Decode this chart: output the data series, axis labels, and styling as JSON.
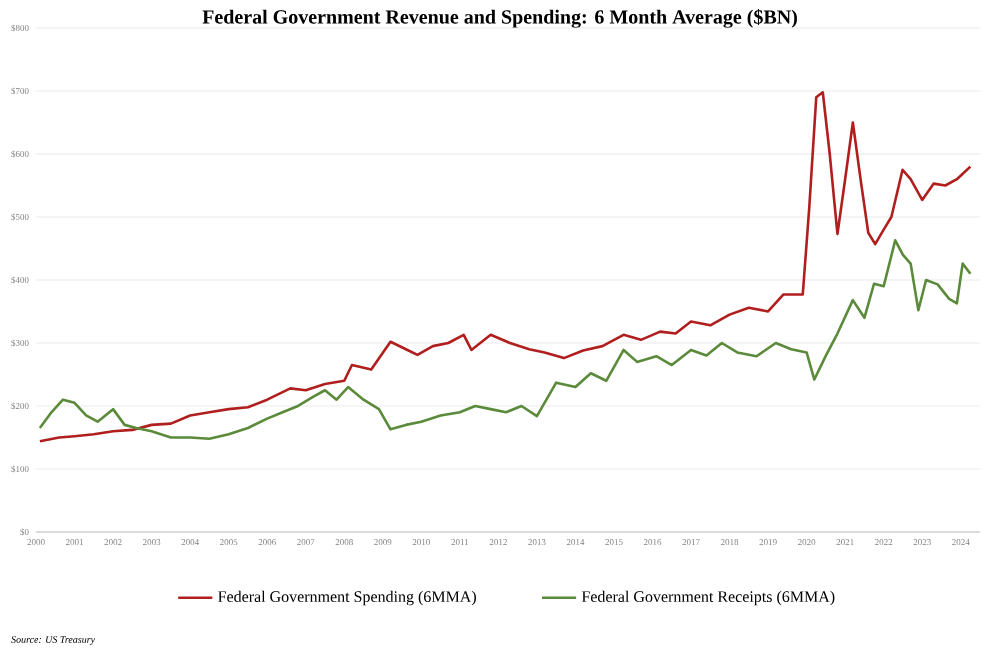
{
  "chart_data": {
    "type": "line",
    "title": "Federal Government Revenue and Spending: 6 Month Average ($BN)",
    "xlim": [
      2000,
      2024.5
    ],
    "xticks": [
      2000,
      2001,
      2002,
      2003,
      2004,
      2005,
      2006,
      2007,
      2008,
      2009,
      2010,
      2011,
      2012,
      2013,
      2014,
      2015,
      2016,
      2017,
      2018,
      2019,
      2020,
      2021,
      2022,
      2023,
      2024
    ],
    "ylim": [
      0,
      800
    ],
    "yticks": [
      {
        "value": 0,
        "label": "$0"
      },
      {
        "value": 100,
        "label": "$100"
      },
      {
        "value": 200,
        "label": "$200"
      },
      {
        "value": 300,
        "label": "$300"
      },
      {
        "value": 400,
        "label": "$400"
      },
      {
        "value": 500,
        "label": "$500"
      },
      {
        "value": 600,
        "label": "$600"
      },
      {
        "value": 700,
        "label": "$700"
      },
      {
        "value": 800,
        "label": "$800"
      }
    ],
    "grid": "y",
    "legend": "bottom",
    "marker": "none",
    "line_style": "solid",
    "series": [
      {
        "name": "Federal Government Spending (6MMA)",
        "color": "#b01e1e",
        "x": [
          2000.1,
          2000.6,
          2001,
          2001.5,
          2002,
          2002.5,
          2003,
          2003.5,
          2004,
          2004.5,
          2005,
          2005.5,
          2006,
          2006.6,
          2007,
          2007.5,
          2008,
          2008.2,
          2008.7,
          2009.2,
          2009.6,
          2009.9,
          2010.3,
          2010.7,
          2011.1,
          2011.3,
          2011.8,
          2012.3,
          2012.8,
          2013.2,
          2013.7,
          2014.2,
          2014.7,
          2015.25,
          2015.7,
          2016.2,
          2016.6,
          2017,
          2017.5,
          2018,
          2018.5,
          2019,
          2019.4,
          2019.9,
          2020.07,
          2020.25,
          2020.42,
          2020.6,
          2020.8,
          2021,
          2021.2,
          2021.4,
          2021.6,
          2021.78,
          2022,
          2022.2,
          2022.49,
          2022.7,
          2023,
          2023.3,
          2023.6,
          2023.9,
          2024.25
        ],
        "values": [
          144,
          150,
          152,
          155,
          160,
          162,
          170,
          172,
          185,
          190,
          195,
          198,
          210,
          228,
          225,
          235,
          240,
          265,
          258,
          302,
          290,
          281,
          295,
          300,
          313,
          289,
          313,
          300,
          290,
          285,
          276,
          288,
          295,
          313,
          305,
          318,
          315,
          334,
          328,
          345,
          356,
          350,
          377,
          377,
          516,
          690,
          698,
          600,
          473,
          560,
          650,
          560,
          475,
          457,
          480,
          500,
          575,
          560,
          527,
          553,
          550,
          560,
          580
        ]
      },
      {
        "name": "Federal Government Receipts (6MMA)",
        "color": "#5a8a3a",
        "x": [
          2000.1,
          2000.4,
          2000.7,
          2001,
          2001.3,
          2001.6,
          2002,
          2002.3,
          2002.6,
          2003,
          2003.5,
          2004,
          2004.5,
          2005,
          2005.5,
          2006,
          2006.4,
          2006.8,
          2007.2,
          2007.5,
          2007.8,
          2008.1,
          2008.5,
          2008.9,
          2009.2,
          2009.6,
          2010,
          2010.5,
          2011,
          2011.4,
          2011.8,
          2012.2,
          2012.6,
          2013,
          2013.5,
          2014,
          2014.4,
          2014.8,
          2015.25,
          2015.6,
          2016.1,
          2016.5,
          2017,
          2017.4,
          2017.8,
          2018.2,
          2018.7,
          2019.2,
          2019.6,
          2020,
          2020.2,
          2020.5,
          2020.8,
          2021.2,
          2021.5,
          2021.75,
          2022,
          2022.3,
          2022.5,
          2022.7,
          2022.9,
          2023.1,
          2023.4,
          2023.7,
          2023.9,
          2024.05,
          2024.25
        ],
        "values": [
          165,
          190,
          210,
          205,
          185,
          175,
          195,
          170,
          165,
          160,
          150,
          150,
          148,
          155,
          165,
          180,
          190,
          200,
          215,
          225,
          210,
          230,
          210,
          195,
          163,
          170,
          175,
          185,
          190,
          200,
          195,
          190,
          200,
          184,
          237,
          230,
          252,
          240,
          289,
          270,
          279,
          265,
          289,
          280,
          300,
          285,
          279,
          300,
          290,
          285,
          242,
          280,
          315,
          368,
          340,
          394,
          390,
          463,
          440,
          426,
          352,
          400,
          393,
          370,
          363,
          426,
          410
        ]
      }
    ],
    "annotations": [
      "Source: US Treasury"
    ]
  }
}
